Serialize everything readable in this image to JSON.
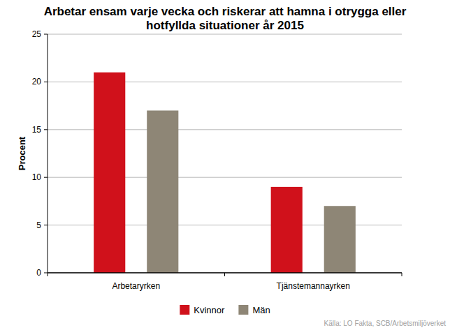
{
  "chart_data": {
    "type": "bar",
    "title": "Arbetar ensam varje vecka och riskerar att hamna i otrygga eller hotfyllda situationer år 2015",
    "y_label": "Procent",
    "categories": [
      "Arbetaryrken",
      "Tjänstemannayrken"
    ],
    "series": [
      {
        "name": "Kvinnor",
        "color": "#d0111b",
        "values": [
          21,
          9
        ]
      },
      {
        "name": "Män",
        "color": "#8e8676",
        "values": [
          17,
          7
        ]
      }
    ],
    "ylim": [
      0,
      25
    ],
    "yticks": [
      0,
      5,
      10,
      15,
      20,
      25
    ],
    "grid": true,
    "legend": "bottom",
    "source": "Källa: LO Fakta, SCB/Arbetsmiljöverket"
  }
}
